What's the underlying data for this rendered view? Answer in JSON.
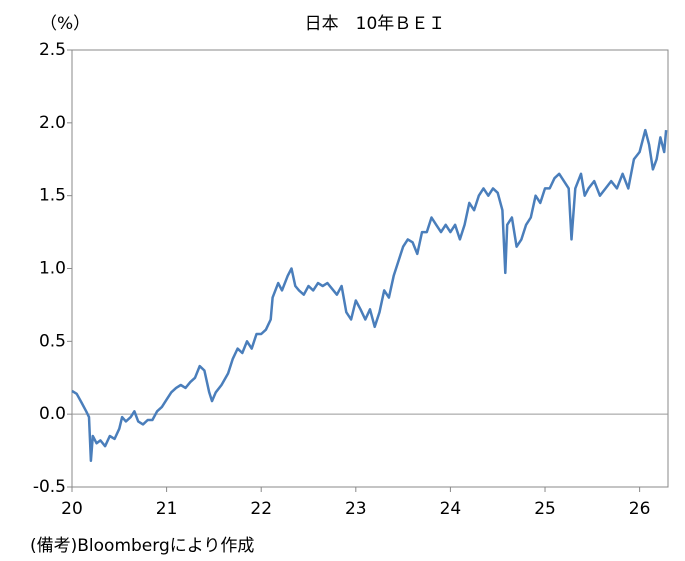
{
  "chart_data": {
    "type": "line",
    "title": "日本　10年ＢＥＩ",
    "unit_label": "（%）",
    "note": "(備考)Bloombergにより作成",
    "xlim": [
      20,
      26.3
    ],
    "xticks": [
      20,
      21,
      22,
      23,
      24,
      25,
      26
    ],
    "ylim": [
      -0.5,
      2.5
    ],
    "yticks": [
      2.5,
      {
        "value": 2,
        "label": "2.0"
      },
      1.5,
      {
        "value": 1,
        "label": "1.0"
      },
      0.5,
      {
        "value": 0,
        "label": "0.0"
      },
      -0.5
    ],
    "zero_line": true,
    "series": [
      {
        "color": "#4a7ebb",
        "x": [
          20.0,
          20.05,
          20.1,
          20.15,
          20.18,
          20.2,
          20.22,
          20.26,
          20.3,
          20.35,
          20.4,
          20.45,
          20.5,
          20.53,
          20.57,
          20.62,
          20.66,
          20.7,
          20.75,
          20.8,
          20.85,
          20.9,
          20.95,
          21.0,
          21.05,
          21.1,
          21.15,
          21.2,
          21.25,
          21.3,
          21.35,
          21.4,
          21.45,
          21.48,
          21.52,
          21.58,
          21.65,
          21.7,
          21.75,
          21.8,
          21.85,
          21.9,
          21.95,
          22.0,
          22.05,
          22.1,
          22.12,
          22.18,
          22.22,
          22.28,
          22.32,
          22.36,
          22.4,
          22.45,
          22.5,
          22.55,
          22.6,
          22.65,
          22.7,
          22.75,
          22.8,
          22.85,
          22.9,
          22.95,
          23.0,
          23.05,
          23.1,
          23.15,
          23.2,
          23.25,
          23.3,
          23.35,
          23.4,
          23.45,
          23.5,
          23.55,
          23.6,
          23.65,
          23.7,
          23.75,
          23.8,
          23.85,
          23.9,
          23.95,
          24.0,
          24.05,
          24.1,
          24.15,
          24.2,
          24.25,
          24.3,
          24.35,
          24.4,
          24.45,
          24.5,
          24.55,
          24.58,
          24.6,
          24.65,
          24.7,
          24.75,
          24.8,
          24.85,
          24.9,
          24.95,
          25.0,
          25.05,
          25.1,
          25.15,
          25.2,
          25.25,
          25.28,
          25.32,
          25.38,
          25.42,
          25.46,
          25.52,
          25.58,
          25.64,
          25.7,
          25.76,
          25.82,
          25.88,
          25.94,
          26.0,
          26.06,
          26.1,
          26.14,
          26.18,
          26.22,
          26.26,
          26.28
        ],
        "values": [
          0.16,
          0.14,
          0.08,
          0.02,
          -0.02,
          -0.32,
          -0.15,
          -0.2,
          -0.18,
          -0.22,
          -0.15,
          -0.17,
          -0.1,
          -0.02,
          -0.05,
          -0.02,
          0.02,
          -0.05,
          -0.07,
          -0.04,
          -0.04,
          0.02,
          0.05,
          0.1,
          0.15,
          0.18,
          0.2,
          0.18,
          0.22,
          0.25,
          0.33,
          0.3,
          0.15,
          0.09,
          0.15,
          0.2,
          0.28,
          0.38,
          0.45,
          0.42,
          0.5,
          0.45,
          0.55,
          0.55,
          0.58,
          0.65,
          0.8,
          0.9,
          0.85,
          0.95,
          1.0,
          0.88,
          0.85,
          0.82,
          0.88,
          0.85,
          0.9,
          0.88,
          0.9,
          0.86,
          0.82,
          0.88,
          0.7,
          0.65,
          0.78,
          0.72,
          0.65,
          0.72,
          0.6,
          0.7,
          0.85,
          0.8,
          0.95,
          1.05,
          1.15,
          1.2,
          1.18,
          1.1,
          1.25,
          1.25,
          1.35,
          1.3,
          1.25,
          1.3,
          1.25,
          1.3,
          1.2,
          1.3,
          1.45,
          1.4,
          1.5,
          1.55,
          1.5,
          1.55,
          1.52,
          1.4,
          0.97,
          1.3,
          1.35,
          1.15,
          1.2,
          1.3,
          1.35,
          1.5,
          1.45,
          1.55,
          1.55,
          1.62,
          1.65,
          1.6,
          1.55,
          1.2,
          1.55,
          1.65,
          1.5,
          1.55,
          1.6,
          1.5,
          1.55,
          1.6,
          1.55,
          1.65,
          1.55,
          1.75,
          1.8,
          1.95,
          1.85,
          1.68,
          1.75,
          1.9,
          1.8,
          1.95
        ]
      }
    ]
  }
}
